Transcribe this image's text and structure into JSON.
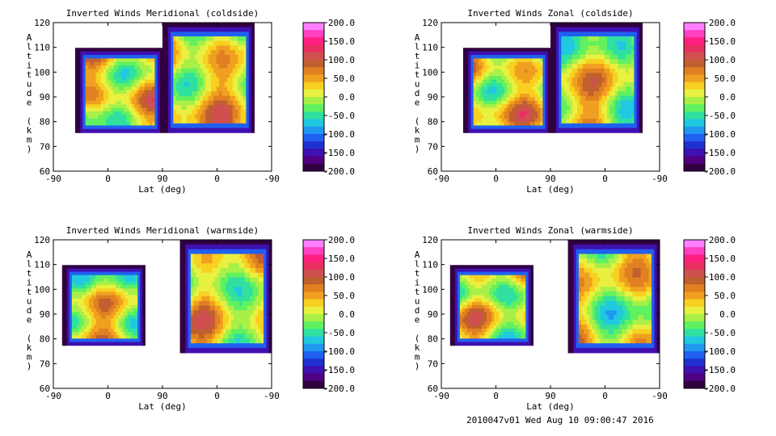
{
  "footer": "2010047v01 Wed Aug 10 09:00:47 2016",
  "colorbar": {
    "labels": [
      "200.0",
      "150.0",
      "100.0",
      "50.0",
      "0.0",
      "-50.0",
      "-100.0",
      "-150.0",
      "-200.0"
    ],
    "colors_top_to_bottom": [
      "#ff80ff",
      "#ff40c0",
      "#ff2080",
      "#e83060",
      "#d05050",
      "#c06030",
      "#e08020",
      "#f0a020",
      "#f8d020",
      "#e8f040",
      "#a8f048",
      "#60f060",
      "#30e0a0",
      "#20c8e0",
      "#2098f0",
      "#2060f0",
      "#2030d0",
      "#4010b0",
      "#500080",
      "#300040"
    ]
  },
  "chart_data": [
    {
      "type": "heatmap",
      "title": "Inverted Winds Meridional (coldside)",
      "xlabel": "Lat (deg)",
      "ylabel": "Altitude (km)",
      "x_ticks": [
        "-90",
        "0",
        "90",
        "0",
        "-90"
      ],
      "y_ticks": [
        "60",
        "70",
        "80",
        "90",
        "100",
        "110",
        "120"
      ],
      "ylim": [
        60,
        120
      ],
      "colorbar_range": [
        -200,
        200
      ],
      "colorbar_ticks": [
        "200.0",
        "150.0",
        "100.0",
        "50.0",
        "0.0",
        "-50.0",
        "-100.0",
        "-150.0",
        "-200.0"
      ],
      "variant": 0
    },
    {
      "type": "heatmap",
      "title": "Inverted Winds Zonal (coldside)",
      "xlabel": "Lat (deg)",
      "ylabel": "Altitude (km)",
      "x_ticks": [
        "-90",
        "0",
        "90",
        "0",
        "-90"
      ],
      "y_ticks": [
        "60",
        "70",
        "80",
        "90",
        "100",
        "110",
        "120"
      ],
      "ylim": [
        60,
        120
      ],
      "colorbar_range": [
        -200,
        200
      ],
      "colorbar_ticks": [
        "200.0",
        "150.0",
        "100.0",
        "50.0",
        "0.0",
        "-50.0",
        "-100.0",
        "-150.0",
        "-200.0"
      ],
      "variant": 1
    },
    {
      "type": "heatmap",
      "title": "Inverted Winds Meridional (warmside)",
      "xlabel": "Lat (deg)",
      "ylabel": "Altitude (km)",
      "x_ticks": [
        "-90",
        "0",
        "90",
        "0",
        "-90"
      ],
      "y_ticks": [
        "60",
        "70",
        "80",
        "90",
        "100",
        "110",
        "120"
      ],
      "ylim": [
        60,
        120
      ],
      "colorbar_range": [
        -200,
        200
      ],
      "colorbar_ticks": [
        "200.0",
        "150.0",
        "100.0",
        "50.0",
        "0.0",
        "-50.0",
        "-100.0",
        "-150.0",
        "-200.0"
      ],
      "variant": 2
    },
    {
      "type": "heatmap",
      "title": "Inverted Winds Zonal (warmside)",
      "xlabel": "Lat (deg)",
      "ylabel": "Altitude (km)",
      "x_ticks": [
        "-90",
        "0",
        "90",
        "0",
        "-90"
      ],
      "y_ticks": [
        "60",
        "70",
        "80",
        "90",
        "100",
        "110",
        "120"
      ],
      "ylim": [
        60,
        120
      ],
      "colorbar_range": [
        -200,
        200
      ],
      "colorbar_ticks": [
        "200.0",
        "150.0",
        "100.0",
        "50.0",
        "0.0",
        "-50.0",
        "-100.0",
        "-150.0",
        "-200.0"
      ],
      "variant": 3
    }
  ]
}
